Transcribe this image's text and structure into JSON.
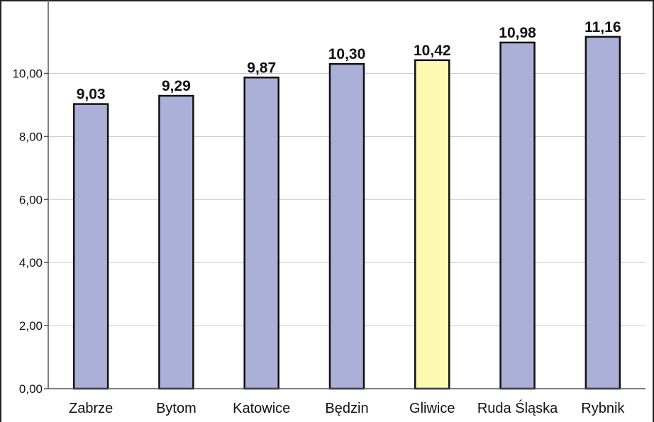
{
  "chart_data": {
    "type": "bar",
    "categories": [
      "Zabrze",
      "Bytom",
      "Katowice",
      "Będzin",
      "Gliwice",
      "Ruda Śląska",
      "Rybnik"
    ],
    "values": [
      9.03,
      9.29,
      9.87,
      10.3,
      10.42,
      10.98,
      11.16
    ],
    "value_labels": [
      "9,03",
      "9,29",
      "9,87",
      "10,30",
      "10,42",
      "10,98",
      "11,16"
    ],
    "title": "",
    "xlabel": "",
    "ylabel": "",
    "ylim": [
      0,
      12
    ],
    "yticks": [
      0,
      2,
      4,
      6,
      8,
      10
    ],
    "ytick_labels": [
      "0,00",
      "2,00",
      "4,00",
      "6,00",
      "8,00",
      "10,00"
    ],
    "grid": true,
    "legend": "none",
    "bar_color": "#abb0d8",
    "highlight_index": 4,
    "highlight_color": "#fdf8b2"
  }
}
